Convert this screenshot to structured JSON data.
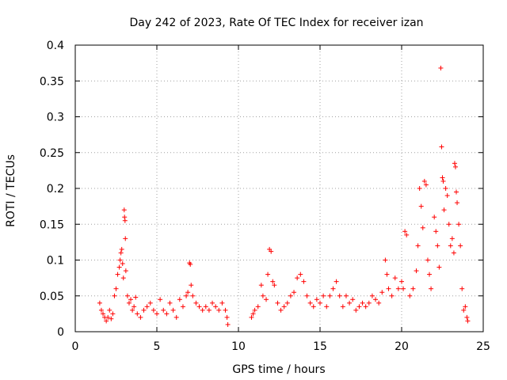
{
  "chart_data": {
    "type": "scatter",
    "title": "Day 242 of 2023, Rate Of TEC Index for receiver izan",
    "xlabel": "GPS time / hours",
    "ylabel": "ROTI / TECUs",
    "xlim": [
      0,
      25
    ],
    "ylim": [
      0,
      0.4
    ],
    "xticks": [
      0,
      5,
      10,
      15,
      20,
      25
    ],
    "xtick_labels": [
      "0",
      "5",
      "10",
      "15",
      "20",
      "25"
    ],
    "yticks": [
      0,
      0.05,
      0.1,
      0.15,
      0.2,
      0.25,
      0.3,
      0.35,
      0.4
    ],
    "ytick_labels": [
      "0",
      "0.05",
      "0.1",
      "0.15",
      "0.2",
      "0.25",
      "0.3",
      "0.35",
      "0.4"
    ],
    "grid": true,
    "marker": "+",
    "marker_color": "#ff0000",
    "series": [
      {
        "name": "ROTI",
        "points": [
          [
            1.5,
            0.04
          ],
          [
            1.6,
            0.03
          ],
          [
            1.7,
            0.025
          ],
          [
            1.8,
            0.02
          ],
          [
            1.9,
            0.015
          ],
          [
            2.0,
            0.02
          ],
          [
            2.1,
            0.03
          ],
          [
            2.2,
            0.018
          ],
          [
            2.3,
            0.025
          ],
          [
            2.4,
            0.05
          ],
          [
            2.5,
            0.06
          ],
          [
            2.6,
            0.08
          ],
          [
            2.7,
            0.09
          ],
          [
            2.75,
            0.1
          ],
          [
            2.8,
            0.11
          ],
          [
            2.85,
            0.115
          ],
          [
            2.9,
            0.095
          ],
          [
            2.95,
            0.075
          ],
          [
            3.0,
            0.17
          ],
          [
            3.02,
            0.16
          ],
          [
            3.05,
            0.155
          ],
          [
            3.07,
            0.13
          ],
          [
            3.1,
            0.085
          ],
          [
            3.2,
            0.05
          ],
          [
            3.3,
            0.04
          ],
          [
            3.4,
            0.045
          ],
          [
            3.5,
            0.03
          ],
          [
            3.6,
            0.035
          ],
          [
            3.7,
            0.048
          ],
          [
            3.8,
            0.025
          ],
          [
            4.0,
            0.02
          ],
          [
            4.2,
            0.03
          ],
          [
            4.4,
            0.035
          ],
          [
            4.6,
            0.04
          ],
          [
            4.8,
            0.03
          ],
          [
            5.0,
            0.025
          ],
          [
            5.2,
            0.045
          ],
          [
            5.4,
            0.03
          ],
          [
            5.6,
            0.025
          ],
          [
            5.8,
            0.04
          ],
          [
            6.0,
            0.03
          ],
          [
            6.2,
            0.02
          ],
          [
            6.4,
            0.045
          ],
          [
            6.6,
            0.035
          ],
          [
            6.8,
            0.05
          ],
          [
            6.9,
            0.055
          ],
          [
            7.0,
            0.096
          ],
          [
            7.05,
            0.094
          ],
          [
            7.1,
            0.065
          ],
          [
            7.2,
            0.05
          ],
          [
            7.4,
            0.04
          ],
          [
            7.6,
            0.035
          ],
          [
            7.8,
            0.03
          ],
          [
            8.0,
            0.035
          ],
          [
            8.2,
            0.03
          ],
          [
            8.4,
            0.04
          ],
          [
            8.6,
            0.035
          ],
          [
            8.8,
            0.03
          ],
          [
            9.0,
            0.04
          ],
          [
            9.2,
            0.03
          ],
          [
            9.3,
            0.02
          ],
          [
            9.35,
            0.01
          ],
          [
            10.8,
            0.02
          ],
          [
            10.9,
            0.025
          ],
          [
            11.0,
            0.03
          ],
          [
            11.2,
            0.035
          ],
          [
            11.4,
            0.065
          ],
          [
            11.5,
            0.05
          ],
          [
            11.7,
            0.045
          ],
          [
            11.8,
            0.08
          ],
          [
            11.9,
            0.115
          ],
          [
            12.0,
            0.112
          ],
          [
            12.1,
            0.07
          ],
          [
            12.2,
            0.065
          ],
          [
            12.4,
            0.04
          ],
          [
            12.6,
            0.03
          ],
          [
            12.8,
            0.035
          ],
          [
            13.0,
            0.04
          ],
          [
            13.2,
            0.05
          ],
          [
            13.4,
            0.055
          ],
          [
            13.6,
            0.075
          ],
          [
            13.8,
            0.08
          ],
          [
            14.0,
            0.07
          ],
          [
            14.2,
            0.05
          ],
          [
            14.4,
            0.04
          ],
          [
            14.6,
            0.035
          ],
          [
            14.8,
            0.045
          ],
          [
            15.0,
            0.04
          ],
          [
            15.2,
            0.05
          ],
          [
            15.4,
            0.035
          ],
          [
            15.6,
            0.05
          ],
          [
            15.8,
            0.06
          ],
          [
            16.0,
            0.07
          ],
          [
            16.2,
            0.05
          ],
          [
            16.4,
            0.035
          ],
          [
            16.6,
            0.05
          ],
          [
            16.8,
            0.04
          ],
          [
            17.0,
            0.045
          ],
          [
            17.2,
            0.03
          ],
          [
            17.4,
            0.035
          ],
          [
            17.6,
            0.04
          ],
          [
            17.8,
            0.035
          ],
          [
            18.0,
            0.04
          ],
          [
            18.2,
            0.05
          ],
          [
            18.4,
            0.045
          ],
          [
            18.6,
            0.04
          ],
          [
            18.8,
            0.055
          ],
          [
            19.0,
            0.1
          ],
          [
            19.1,
            0.08
          ],
          [
            19.2,
            0.06
          ],
          [
            19.4,
            0.05
          ],
          [
            19.6,
            0.075
          ],
          [
            19.8,
            0.06
          ],
          [
            20.0,
            0.07
          ],
          [
            20.1,
            0.06
          ],
          [
            20.2,
            0.14
          ],
          [
            20.3,
            0.135
          ],
          [
            20.5,
            0.05
          ],
          [
            20.7,
            0.06
          ],
          [
            20.9,
            0.085
          ],
          [
            21.0,
            0.12
          ],
          [
            21.1,
            0.2
          ],
          [
            21.2,
            0.175
          ],
          [
            21.3,
            0.145
          ],
          [
            21.4,
            0.21
          ],
          [
            21.5,
            0.205
          ],
          [
            21.6,
            0.1
          ],
          [
            21.7,
            0.08
          ],
          [
            21.8,
            0.06
          ],
          [
            22.0,
            0.16
          ],
          [
            22.1,
            0.14
          ],
          [
            22.2,
            0.12
          ],
          [
            22.3,
            0.09
          ],
          [
            22.4,
            0.368
          ],
          [
            22.45,
            0.258
          ],
          [
            22.5,
            0.215
          ],
          [
            22.55,
            0.21
          ],
          [
            22.6,
            0.17
          ],
          [
            22.7,
            0.2
          ],
          [
            22.8,
            0.19
          ],
          [
            22.9,
            0.15
          ],
          [
            23.0,
            0.12
          ],
          [
            23.1,
            0.13
          ],
          [
            23.2,
            0.11
          ],
          [
            23.25,
            0.235
          ],
          [
            23.3,
            0.23
          ],
          [
            23.35,
            0.195
          ],
          [
            23.4,
            0.18
          ],
          [
            23.5,
            0.15
          ],
          [
            23.6,
            0.12
          ],
          [
            23.7,
            0.06
          ],
          [
            23.8,
            0.03
          ],
          [
            23.9,
            0.035
          ],
          [
            24.0,
            0.02
          ],
          [
            24.05,
            0.015
          ]
        ]
      }
    ]
  }
}
